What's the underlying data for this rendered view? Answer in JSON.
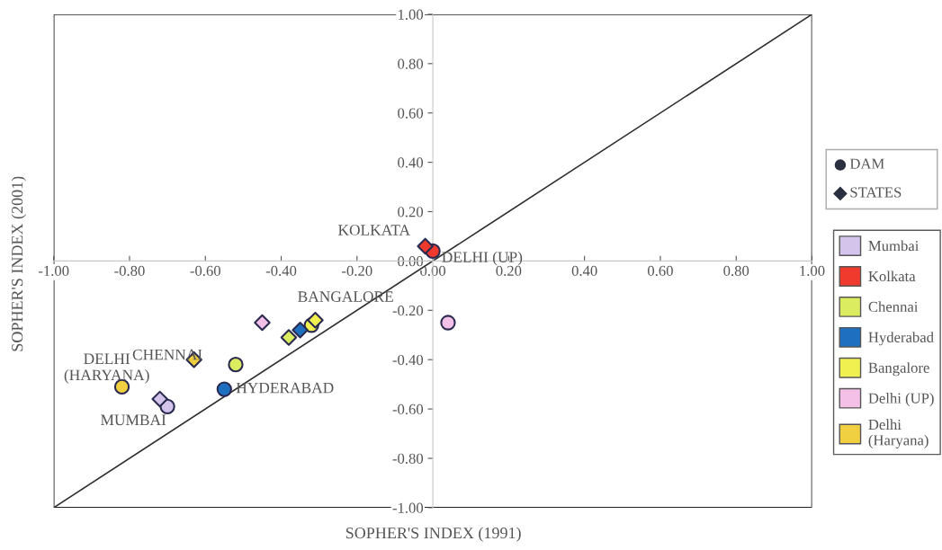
{
  "chart_data": {
    "type": "scatter",
    "xlabel": "SOPHER'S INDEX (1991)",
    "ylabel": "SOPHER'S INDEX (2001)",
    "series": [
      {
        "name": "Mumbai",
        "marker": "circle",
        "color": "#d4c4ec",
        "x": [
          -0.7
        ],
        "values": [
          -0.59
        ]
      },
      {
        "name": "Kolkata",
        "marker": "circle",
        "color": "#f03a2e",
        "x": [
          0.0
        ],
        "values": [
          0.04
        ]
      },
      {
        "name": "Chennai",
        "marker": "circle",
        "color": "#dcec60",
        "x": [
          -0.52
        ],
        "values": [
          -0.42
        ]
      },
      {
        "name": "Hyderabad",
        "marker": "circle",
        "color": "#1f6fc0",
        "x": [
          -0.55
        ],
        "values": [
          -0.52
        ]
      },
      {
        "name": "Bangalore",
        "marker": "circle",
        "color": "#f0f050",
        "x": [
          -0.32
        ],
        "values": [
          -0.26
        ]
      },
      {
        "name": "Delhi (UP)",
        "marker": "circle",
        "color": "#f4c0e8",
        "x": [
          0.04
        ],
        "values": [
          -0.25
        ]
      },
      {
        "name": "Delhi (Haryana)",
        "marker": "circle",
        "color": "#f0d040",
        "x": [
          -0.82
        ],
        "values": [
          -0.51
        ]
      },
      {
        "marker": "diamond",
        "color": "#d4c4ec",
        "x": [
          -0.72
        ],
        "values": [
          -0.56
        ]
      },
      {
        "marker": "diamond",
        "color": "#f03a2e",
        "x": [
          -0.02
        ],
        "values": [
          0.06
        ]
      },
      {
        "marker": "diamond",
        "color": "#dcec60",
        "x": [
          -0.38
        ],
        "values": [
          -0.31
        ]
      },
      {
        "marker": "diamond",
        "color": "#1f6fc0",
        "x": [
          -0.35
        ],
        "values": [
          -0.28
        ]
      },
      {
        "marker": "diamond",
        "color": "#f0f050",
        "x": [
          -0.31
        ],
        "values": [
          -0.24
        ]
      },
      {
        "marker": "diamond",
        "color": "#f4c0e8",
        "x": [
          -0.45
        ],
        "values": [
          -0.25
        ]
      },
      {
        "marker": "diamond",
        "color": "#f0d040",
        "x": [
          -0.63
        ],
        "values": [
          -0.4
        ]
      },
      {
        "type": "line",
        "color": "#303030",
        "x": [
          -1,
          1
        ],
        "values": [
          -1,
          1
        ]
      }
    ],
    "xlim": [
      -1,
      1
    ],
    "ylim": [
      -1,
      1
    ],
    "xticks": [
      {
        "value": -1,
        "label": "-1.00"
      },
      {
        "value": -0.8,
        "label": "-0.80"
      },
      {
        "value": -0.6,
        "label": "-0.60"
      },
      {
        "value": -0.4,
        "label": "-0.40"
      },
      {
        "value": -0.2,
        "label": "-0.20"
      },
      {
        "value": 0,
        "label": "0.00"
      },
      {
        "value": 0.2,
        "label": "0.20"
      },
      {
        "value": 0.4,
        "label": "0.40"
      },
      {
        "value": 0.6,
        "label": "0.60"
      },
      {
        "value": 0.8,
        "label": "0.80"
      },
      {
        "value": 1,
        "label": "1.00"
      }
    ],
    "yticks": [
      {
        "value": -1,
        "label": "-1.00"
      },
      {
        "value": -0.8,
        "label": "-0.80"
      },
      {
        "value": -0.6,
        "label": "-0.60"
      },
      {
        "value": -0.4,
        "label": "-0.40"
      },
      {
        "value": -0.2,
        "label": "-0.20"
      },
      {
        "value": 0,
        "label": "0.00"
      },
      {
        "value": 0.2,
        "label": "0.20"
      },
      {
        "value": 0.4,
        "label": "0.40"
      },
      {
        "value": 0.6,
        "label": "0.60"
      },
      {
        "value": 0.8,
        "label": "0.80"
      },
      {
        "value": 1,
        "label": "1.00"
      }
    ],
    "annotations": [
      "KOLKATA",
      "DELHI (UP)",
      "BANGALORE",
      "CHENNAI",
      "HYDERABAD",
      "DELHI\n(HARYANA)",
      "MUMBAI",
      "DAM",
      "STATES"
    ],
    "legend": "right",
    "grid": false
  }
}
